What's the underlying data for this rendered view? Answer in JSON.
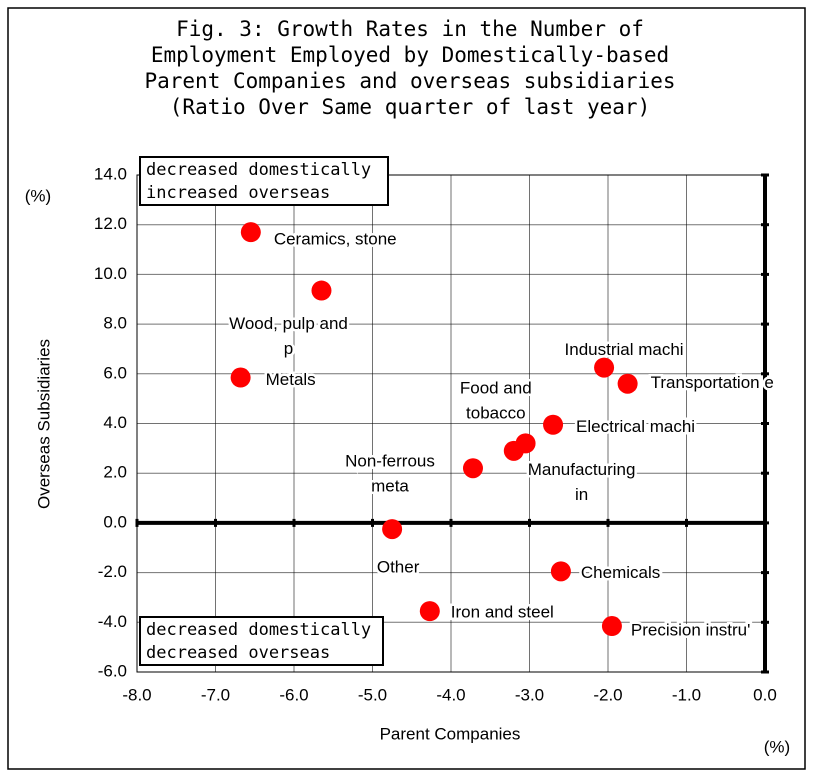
{
  "chart_data": {
    "type": "scatter",
    "title": [
      "Fig. 3: Growth Rates in the Number of",
      "Employment Employed by Domestically-based",
      "Parent Companies and overseas subsidiaries",
      "(Ratio Over Same quarter of last year)"
    ],
    "x_label": "Parent Companies",
    "y_label": "Overseas Subsidiaries",
    "x_unit": "(%)",
    "y_unit": "(%)",
    "annotations": [
      [
        "decreased domestically",
        "increased overseas"
      ],
      [
        "decreased domestically",
        "decreased overseas"
      ]
    ],
    "x": [
      -6.55,
      -5.65,
      -6.68,
      -2.05,
      -1.75,
      -3.2,
      -2.7,
      -3.05,
      -3.72,
      -4.75,
      -2.6,
      -4.27,
      -1.95
    ],
    "values": [
      11.7,
      9.35,
      5.85,
      6.25,
      5.6,
      2.9,
      3.95,
      3.2,
      2.2,
      -0.25,
      -1.95,
      -3.55,
      -4.15
    ],
    "point_labels": [
      [
        "Ceramics, stone"
      ],
      [
        "Wood, pulp and",
        "p"
      ],
      [
        "Metals"
      ],
      [
        "Industrial machi"
      ],
      [
        "Transportation e"
      ],
      [
        "Food and",
        "tobacco"
      ],
      [
        "Electrical machi"
      ],
      [
        "Manufacturing",
        "in"
      ],
      [
        "Non-ferrous",
        "meta"
      ],
      [
        "Other"
      ],
      [
        "Chemicals"
      ],
      [
        "Iron and steel"
      ],
      [
        "Precision instru'"
      ]
    ],
    "color": "#ff0000",
    "negative_tick_color": "#ff0000",
    "xlim": [
      -8,
      0
    ],
    "ylim": [
      -6,
      14
    ],
    "xticks": [
      {
        "value": -8,
        "label": "-8.0"
      },
      {
        "value": -7,
        "label": "-7.0"
      },
      {
        "value": -6,
        "label": "-6.0"
      },
      {
        "value": -5,
        "label": "-5.0"
      },
      {
        "value": -4,
        "label": "-4.0"
      },
      {
        "value": -3,
        "label": "-3.0"
      },
      {
        "value": -2,
        "label": "-2.0"
      },
      {
        "value": -1,
        "label": "-1.0"
      },
      {
        "value": 0,
        "label": "0.0"
      }
    ],
    "yticks": [
      {
        "value": -6,
        "label": "-6.0"
      },
      {
        "value": -4,
        "label": "-4.0"
      },
      {
        "value": -2,
        "label": "-2.0"
      },
      {
        "value": 0,
        "label": "0.0"
      },
      {
        "value": 2,
        "label": "2.0"
      },
      {
        "value": 4,
        "label": "4.0"
      },
      {
        "value": 6,
        "label": "6.0"
      },
      {
        "value": 8,
        "label": "8.0"
      },
      {
        "value": 10,
        "label": "10.0"
      },
      {
        "value": 12,
        "label": "12.0"
      },
      {
        "value": 14,
        "label": "14.0"
      }
    ],
    "grid": true
  }
}
